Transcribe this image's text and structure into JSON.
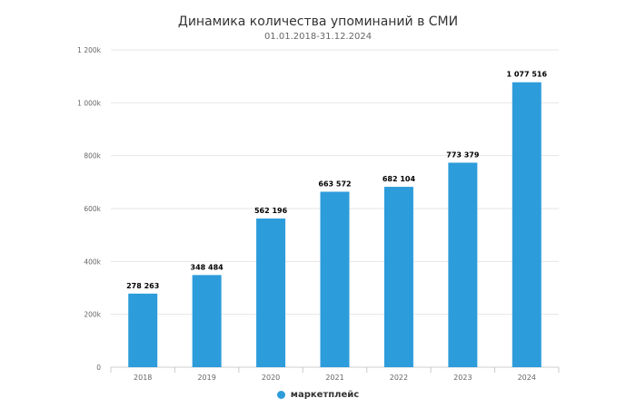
{
  "title": "Динамика количества упоминаний в СМИ",
  "subtitle": "01.01.2018-31.12.2024",
  "colors": {
    "bar": "#2d9cdb",
    "grid": "#e6e6e6",
    "axis": "#cccccc"
  },
  "chart_data": {
    "type": "bar",
    "title": "Динамика количества упоминаний в СМИ",
    "subtitle": "01.01.2018-31.12.2024",
    "categories": [
      "2018",
      "2019",
      "2020",
      "2021",
      "2022",
      "2023",
      "2024"
    ],
    "series": [
      {
        "name": "маркетплейс",
        "values": [
          278263,
          348484,
          562196,
          663572,
          682104,
          773379,
          1077516
        ],
        "labels": [
          "278 263",
          "348 484",
          "562 196",
          "663 572",
          "682 104",
          "773 379",
          "1 077 516"
        ]
      }
    ],
    "ylim": [
      0,
      1200000
    ],
    "yticks": [
      0,
      200000,
      400000,
      600000,
      800000,
      1000000,
      1200000
    ],
    "ytick_labels": [
      "0",
      "200k",
      "400k",
      "600k",
      "800k",
      "1 000k",
      "1 200k"
    ],
    "grid": true,
    "legend": "bottom-center"
  }
}
